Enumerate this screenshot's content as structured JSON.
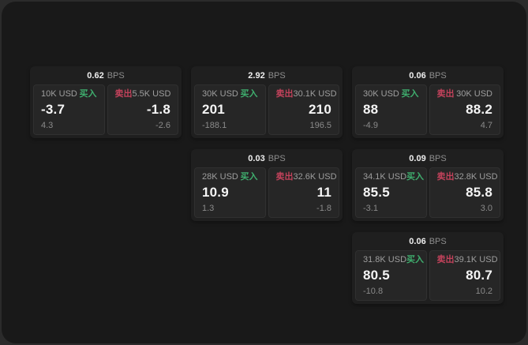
{
  "window": {
    "frame_background": "#2b2b2b",
    "background": "#191919"
  },
  "colors": {
    "buy_accent": "#3fae6e",
    "sell_accent": "#c2425b",
    "card_background": "#1f1f1f",
    "panel_background": "#262626"
  },
  "cards": [
    {
      "bps_value": "0.62",
      "bps_unit": "BPS",
      "buy": {
        "size": "10K USD",
        "label": "买入",
        "price": "-3.7",
        "delta": "4.3"
      },
      "sell": {
        "label": "卖出",
        "size": "5.5K USD",
        "price": "-1.8",
        "delta": "-2.6"
      }
    },
    {
      "bps_value": "2.92",
      "bps_unit": "BPS",
      "buy": {
        "size": "30K USD",
        "label": "买入",
        "price": "201",
        "delta": "-188.1"
      },
      "sell": {
        "label": "卖出",
        "size": "30.1K USD",
        "price": "210",
        "delta": "196.5"
      }
    },
    {
      "bps_value": "0.06",
      "bps_unit": "BPS",
      "buy": {
        "size": "30K USD",
        "label": "买入",
        "price": "88",
        "delta": "-4.9"
      },
      "sell": {
        "label": "卖出",
        "size": "30K USD",
        "price": "88.2",
        "delta": "4.7"
      }
    },
    {
      "bps_value": "0.03",
      "bps_unit": "BPS",
      "buy": {
        "size": "28K USD",
        "label": "买入",
        "price": "10.9",
        "delta": "1.3"
      },
      "sell": {
        "label": "卖出",
        "size": "32.6K USD",
        "price": "11",
        "delta": "-1.8"
      }
    },
    {
      "bps_value": "0.09",
      "bps_unit": "BPS",
      "buy": {
        "size": "34.1K USD",
        "label": "买入",
        "price": "85.5",
        "delta": "-3.1"
      },
      "sell": {
        "label": "卖出",
        "size": "32.8K USD",
        "price": "85.8",
        "delta": "3.0"
      }
    },
    {
      "bps_value": "0.06",
      "bps_unit": "BPS",
      "buy": {
        "size": "31.8K USD",
        "label": "买入",
        "price": "80.5",
        "delta": "-10.8"
      },
      "sell": {
        "label": "卖出",
        "size": "39.1K USD",
        "price": "80.7",
        "delta": "10.2"
      }
    }
  ]
}
